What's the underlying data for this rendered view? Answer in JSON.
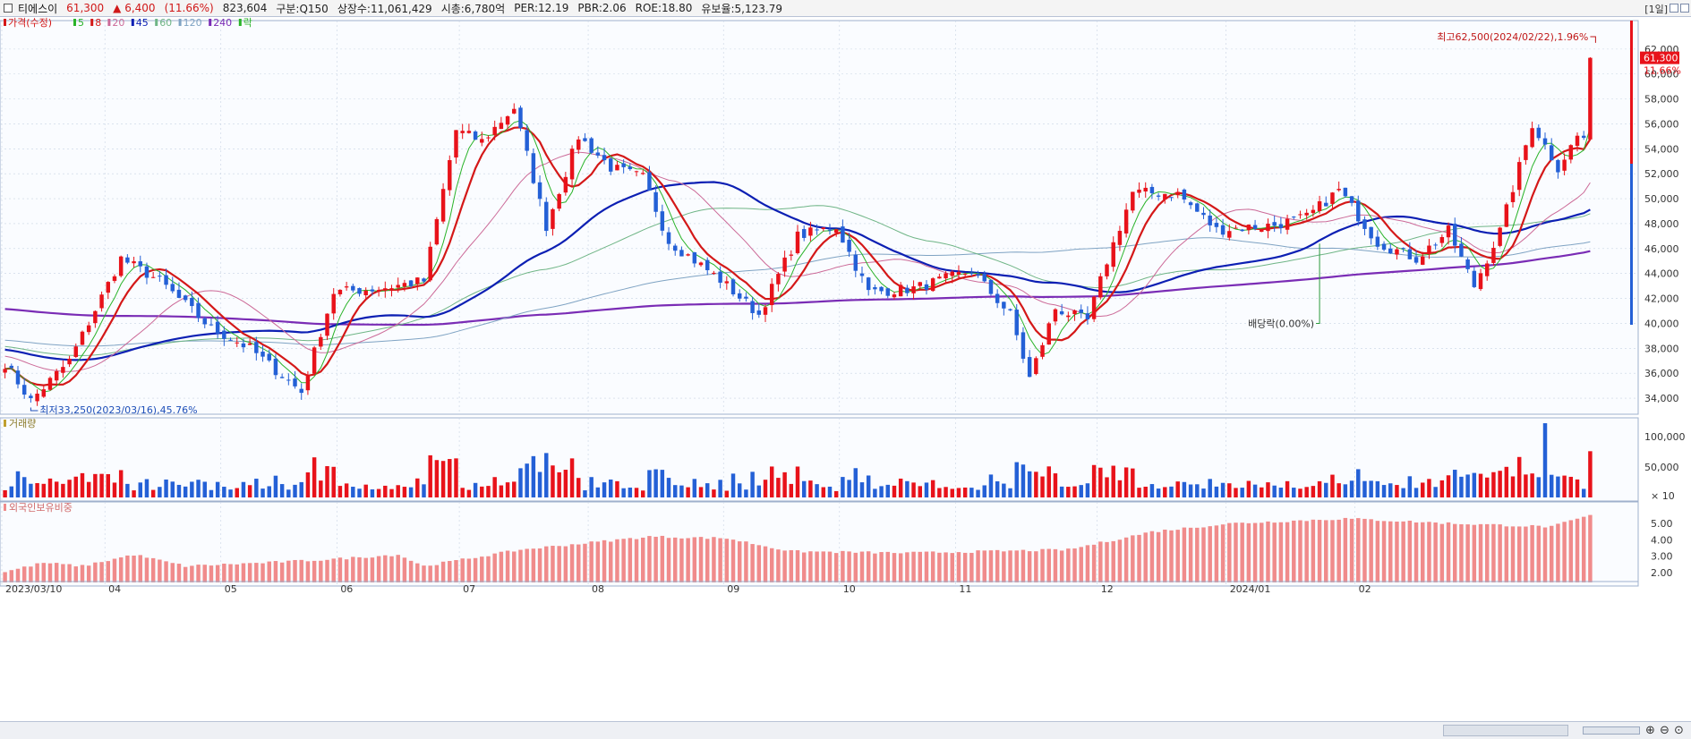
{
  "header": {
    "name": "티에스이",
    "price": "61,300",
    "change": "▲ 6,400",
    "change_pct": "(11.66%)",
    "volume": "823,604",
    "market": "구분:Q150",
    "shares": "상장수:11,061,429",
    "mktcap": "시총:6,780억",
    "per": "PER:12.19",
    "pbr": "PBR:2.06",
    "roe": "ROE:18.80",
    "float": "유보율:5,123.79",
    "period": "[1일]"
  },
  "colors": {
    "up": "#e8121a",
    "down": "#2460d6",
    "ma5": "#29b329",
    "ma8": "#d41818",
    "ma20": "#cc6a98",
    "ma45": "#0c1fb3",
    "ma60": "#6fb586",
    "ma120": "#7fa3c3",
    "ma240": "#7a2cb5",
    "foreign": "#f08b8b",
    "grid": "#c8d3e3",
    "panel_bg": "#fafcff"
  },
  "chart_data": [
    {
      "type": "candlestick",
      "title": "가격(수정)",
      "legend": [
        {
          "label": "가격(수정)",
          "color": "#d41818"
        },
        {
          "label": "5",
          "color": "#29b329"
        },
        {
          "label": "8",
          "color": "#d41818"
        },
        {
          "label": "20",
          "color": "#cc6a98"
        },
        {
          "label": "45",
          "color": "#0c1fb3"
        },
        {
          "label": "60",
          "color": "#6fb586"
        },
        {
          "label": "120",
          "color": "#7fa3c3"
        },
        {
          "label": "240",
          "color": "#7a2cb5"
        },
        {
          "label": "락",
          "color": "#29b329"
        }
      ],
      "y_ticks": [
        "62,000",
        "60,000",
        "58,000",
        "56,000",
        "54,000",
        "52,000",
        "50,000",
        "48,000",
        "46,000",
        "44,000",
        "42,000",
        "40,000",
        "38,000",
        "36,000",
        "34,000"
      ],
      "ylim": [
        33000,
        64000
      ],
      "current_price_label": "61,300",
      "current_pct_label": "11.66%",
      "anchors": [
        {
          "i": 0,
          "c": 36800
        },
        {
          "i": 4,
          "c": 33800
        },
        {
          "i": 10,
          "c": 37000
        },
        {
          "i": 18,
          "c": 45200
        },
        {
          "i": 24,
          "c": 43400
        },
        {
          "i": 32,
          "c": 39600
        },
        {
          "i": 38,
          "c": 38000
        },
        {
          "i": 46,
          "c": 34500
        },
        {
          "i": 51,
          "c": 42500
        },
        {
          "i": 58,
          "c": 42800
        },
        {
          "i": 65,
          "c": 43400
        },
        {
          "i": 70,
          "c": 55500
        },
        {
          "i": 74,
          "c": 54600
        },
        {
          "i": 79,
          "c": 57300
        },
        {
          "i": 84,
          "c": 47800
        },
        {
          "i": 89,
          "c": 55000
        },
        {
          "i": 94,
          "c": 52500
        },
        {
          "i": 99,
          "c": 51700
        },
        {
          "i": 103,
          "c": 46600
        },
        {
          "i": 111,
          "c": 43500
        },
        {
          "i": 117,
          "c": 40700
        },
        {
          "i": 123,
          "c": 47000
        },
        {
          "i": 129,
          "c": 47800
        },
        {
          "i": 134,
          "c": 42500
        },
        {
          "i": 141,
          "c": 42800
        },
        {
          "i": 150,
          "c": 44200
        },
        {
          "i": 156,
          "c": 40700
        },
        {
          "i": 159,
          "c": 35600
        },
        {
          "i": 163,
          "c": 41200
        },
        {
          "i": 168,
          "c": 40200
        },
        {
          "i": 171,
          "c": 45000
        },
        {
          "i": 175,
          "c": 50500
        },
        {
          "i": 182,
          "c": 50400
        },
        {
          "i": 188,
          "c": 47500
        },
        {
          "i": 197,
          "c": 47900
        },
        {
          "i": 202,
          "c": 48500
        },
        {
          "i": 207,
          "c": 50700
        },
        {
          "i": 213,
          "c": 46500
        },
        {
          "i": 219,
          "c": 45200
        },
        {
          "i": 224,
          "c": 47400
        },
        {
          "i": 228,
          "c": 43000
        },
        {
          "i": 232,
          "c": 47400
        },
        {
          "i": 237,
          "c": 56000
        },
        {
          "i": 241,
          "c": 52500
        },
        {
          "i": 244,
          "c": 55000
        },
        {
          "i": 245,
          "c": 54900
        },
        {
          "i": 246,
          "c": 61300
        }
      ],
      "n_days": 247,
      "annotations": {
        "high": "최고62,500(2024/02/22),1.96%",
        "low": "최저33,250(2023/03/16),45.76%",
        "dividend": "배당락(0.00%)"
      }
    },
    {
      "type": "bar",
      "title": "거래량",
      "y_ticks": [
        "100,000",
        "50,000"
      ],
      "unit": "× 10",
      "ylim": [
        0,
        125000
      ]
    },
    {
      "type": "bar",
      "title": "외국인보유비중",
      "y_ticks": [
        "5.00",
        "4.00",
        "3.00",
        "2.00"
      ],
      "ylim": [
        1.4,
        6.1
      ],
      "anchors": [
        {
          "i": 0,
          "v": 2.05
        },
        {
          "i": 6,
          "v": 2.6
        },
        {
          "i": 12,
          "v": 2.4
        },
        {
          "i": 20,
          "v": 3.1
        },
        {
          "i": 28,
          "v": 2.4
        },
        {
          "i": 40,
          "v": 2.6
        },
        {
          "i": 50,
          "v": 2.8
        },
        {
          "i": 61,
          "v": 3.1
        },
        {
          "i": 65,
          "v": 2.4
        },
        {
          "i": 80,
          "v": 3.4
        },
        {
          "i": 100,
          "v": 4.2
        },
        {
          "i": 112,
          "v": 4.1
        },
        {
          "i": 122,
          "v": 3.3
        },
        {
          "i": 140,
          "v": 3.2
        },
        {
          "i": 165,
          "v": 3.4
        },
        {
          "i": 178,
          "v": 4.5
        },
        {
          "i": 190,
          "v": 5.0
        },
        {
          "i": 208,
          "v": 5.3
        },
        {
          "i": 225,
          "v": 5.0
        },
        {
          "i": 240,
          "v": 4.8
        },
        {
          "i": 246,
          "v": 5.5
        }
      ]
    }
  ],
  "x_axis": {
    "labels": [
      {
        "i": 0,
        "text": "2023/03/10"
      },
      {
        "i": 16,
        "text": "04"
      },
      {
        "i": 34,
        "text": "05"
      },
      {
        "i": 52,
        "text": "06"
      },
      {
        "i": 71,
        "text": "07"
      },
      {
        "i": 91,
        "text": "08"
      },
      {
        "i": 112,
        "text": "09"
      },
      {
        "i": 130,
        "text": "10"
      },
      {
        "i": 148,
        "text": "11"
      },
      {
        "i": 170,
        "text": "12"
      },
      {
        "i": 190,
        "text": "2024/01"
      },
      {
        "i": 210,
        "text": "02"
      }
    ]
  }
}
